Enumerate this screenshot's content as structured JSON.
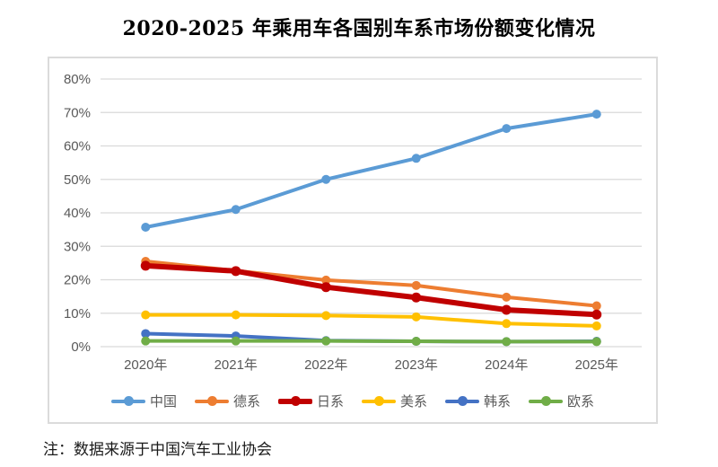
{
  "title": "2020-2025 年乘用车各国别车系市场份额变化情况",
  "note": "注：数据来源于中国汽车工业协会",
  "chart_data": {
    "type": "line",
    "title": "2020-2025 年乘用车各国别车系市场份额变化情况",
    "xlabel": "",
    "ylabel": "",
    "categories": [
      "2020年",
      "2021年",
      "2022年",
      "2023年",
      "2024年",
      "2025年"
    ],
    "series": [
      {
        "name": "中国",
        "slug": "china",
        "color": "#5B9BD5",
        "line_width": 4,
        "values": [
          35.7,
          41.0,
          50.0,
          56.3,
          65.2,
          69.5
        ]
      },
      {
        "name": "德系",
        "slug": "german",
        "color": "#ED7D31",
        "line_width": 4,
        "values": [
          25.5,
          22.7,
          19.9,
          18.3,
          14.8,
          12.2
        ]
      },
      {
        "name": "日系",
        "slug": "japanese",
        "color": "#C00000",
        "line_width": 6,
        "values": [
          24.2,
          22.6,
          17.8,
          14.7,
          11.0,
          9.6
        ]
      },
      {
        "name": "美系",
        "slug": "american",
        "color": "#FFC000",
        "line_width": 4,
        "values": [
          9.5,
          9.5,
          9.3,
          8.9,
          6.9,
          6.2
        ]
      },
      {
        "name": "韩系",
        "slug": "korean",
        "color": "#4472C4",
        "line_width": 4,
        "values": [
          3.9,
          3.2,
          1.8,
          1.6,
          1.5,
          1.6
        ]
      },
      {
        "name": "欧系",
        "slug": "european",
        "color": "#70AD47",
        "line_width": 4,
        "values": [
          1.7,
          1.7,
          1.7,
          1.6,
          1.5,
          1.5
        ]
      }
    ],
    "ylim": [
      0,
      80
    ],
    "ytick_step": 10,
    "yticks": [
      "0%",
      "10%",
      "20%",
      "30%",
      "40%",
      "50%",
      "60%",
      "70%",
      "80%"
    ],
    "grid": true,
    "gridline_color": "#D9D9D9",
    "tick_label_color": "#595959",
    "legend_position": "bottom"
  }
}
